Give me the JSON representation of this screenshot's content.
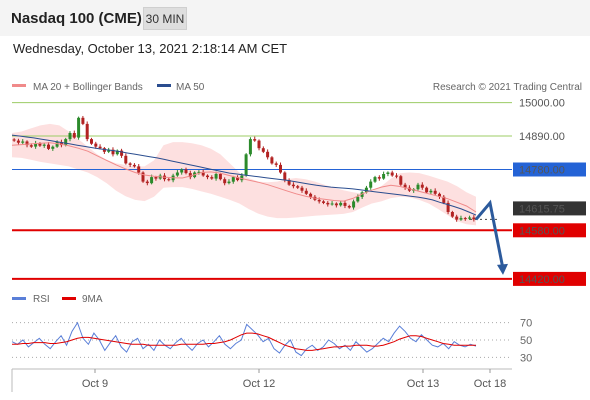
{
  "header": {
    "title": "Nasdaq 100 (CME)",
    "timeframe": "30 MIN",
    "datetime": "Wednesday, October 13, 2021 2:18:14 AM CET"
  },
  "legend": {
    "bollinger": {
      "label": "MA 20 + Bollinger Bands",
      "color": "#f08a8a"
    },
    "ma50": {
      "label": "MA 50",
      "color": "#2a4d8f"
    }
  },
  "credit": "Research © 2021 Trading Central",
  "colors": {
    "up": "#2b8a2b",
    "down": "#b22222",
    "support": "#e00000",
    "resistance_green": "#9ccc65",
    "resistance_blue": "#2463d6",
    "pivot_arrow": "#2c5a9c",
    "band_fill": "#fde0e0"
  },
  "chart_data": [
    {
      "type": "line",
      "name": "price",
      "x_ticks": [
        "Oct 9",
        "Oct 12",
        "Oct 13",
        "Oct 18"
      ],
      "ylim": [
        14400,
        15025
      ],
      "levels": [
        {
          "label": "15000.00",
          "value": 15000,
          "kind": "resistance"
        },
        {
          "label": "14890.00",
          "value": 14890,
          "kind": "resistance"
        },
        {
          "label": "14780.00",
          "value": 14780,
          "kind": "pivot"
        },
        {
          "label": "14615.75",
          "value": 14615.75,
          "kind": "last"
        },
        {
          "label": "14580.00",
          "value": 14580,
          "kind": "support"
        },
        {
          "label": "14420.00",
          "value": 14420,
          "kind": "support"
        }
      ],
      "candles_close": [
        14875,
        14868,
        14872,
        14860,
        14855,
        14866,
        14858,
        14862,
        14848,
        14855,
        14870,
        14860,
        14880,
        14900,
        14885,
        14950,
        14930,
        14880,
        14865,
        14855,
        14850,
        14838,
        14845,
        14830,
        14842,
        14825,
        14800,
        14795,
        14790,
        14770,
        14740,
        14735,
        14755,
        14750,
        14760,
        14748,
        14745,
        14760,
        14770,
        14780,
        14768,
        14755,
        14770,
        14772,
        14760,
        14755,
        14750,
        14765,
        14748,
        14735,
        14740,
        14755,
        14745,
        14760,
        14830,
        14880,
        14875,
        14850,
        14838,
        14820,
        14800,
        14795,
        14770,
        14745,
        14730,
        14725,
        14720,
        14710,
        14700,
        14690,
        14680,
        14675,
        14670,
        14665,
        14668,
        14662,
        14670,
        14660,
        14655,
        14675,
        14690,
        14705,
        14720,
        14740,
        14755,
        14750,
        14765,
        14770,
        14760,
        14758,
        14730,
        14720,
        14710,
        14715,
        14730,
        14720,
        14705,
        14710,
        14700,
        14690,
        14670,
        14640,
        14625,
        14615,
        14620,
        14618,
        14622,
        14615.75
      ],
      "ma50": [
        14893,
        14890,
        14887,
        14884,
        14880,
        14876,
        14872,
        14868,
        14864,
        14860,
        14856,
        14852,
        14848,
        14845,
        14842,
        14838,
        14834,
        14830,
        14826,
        14822,
        14818,
        14813,
        14808,
        14803,
        14798,
        14793,
        14788,
        14783,
        14778,
        14773,
        14768,
        14765,
        14762,
        14759,
        14756,
        14753,
        14750,
        14747,
        14744,
        14740,
        14736,
        14732,
        14728,
        14725,
        14722,
        14720,
        14718,
        14716,
        14713,
        14710,
        14707,
        14704,
        14701,
        14698,
        14695,
        14692,
        14689,
        14685,
        14680,
        14672,
        14665,
        14658,
        14650,
        14640,
        14630
      ],
      "bollinger_mid": [
        14860,
        14862,
        14864,
        14866,
        14868,
        14864,
        14858,
        14850,
        14840,
        14825,
        14810,
        14795,
        14782,
        14770,
        14762,
        14758,
        14755,
        14753,
        14752,
        14760,
        14770,
        14772,
        14768,
        14760,
        14752,
        14745,
        14738,
        14730,
        14720,
        14710,
        14700,
        14692,
        14686,
        14682,
        14678,
        14676,
        14685,
        14700,
        14712,
        14722,
        14728,
        14724,
        14716,
        14708,
        14700,
        14692,
        14684,
        14672,
        14660,
        14640
      ],
      "bollinger_upper": [
        14900,
        14905,
        14915,
        14925,
        14930,
        14925,
        14905,
        14880,
        14855,
        14830,
        14812,
        14800,
        14795,
        14790,
        14790,
        14810,
        14860,
        14870,
        14870,
        14866,
        14860,
        14848,
        14830,
        14800,
        14770,
        14752,
        14740,
        14738,
        14740,
        14748,
        14752,
        14748,
        14740,
        14730,
        14720,
        14712,
        14705,
        14700,
        14708,
        14725,
        14750,
        14768,
        14770,
        14768,
        14760,
        14750,
        14740,
        14725,
        14705,
        14690
      ],
      "bollinger_lower": [
        14820,
        14818,
        14812,
        14805,
        14800,
        14795,
        14790,
        14780,
        14770,
        14755,
        14735,
        14710,
        14692,
        14680,
        14676,
        14690,
        14720,
        14722,
        14722,
        14716,
        14708,
        14700,
        14690,
        14680,
        14668,
        14650,
        14635,
        14625,
        14620,
        14620,
        14622,
        14625,
        14628,
        14630,
        14632,
        14634,
        14640,
        14655,
        14668,
        14675,
        14686,
        14690,
        14688,
        14680,
        14668,
        14650,
        14630,
        14610,
        14600,
        14596
      ],
      "forecast": [
        14615.75,
        14670,
        14440
      ]
    },
    {
      "type": "line",
      "name": "oscillator",
      "legend": [
        "RSI",
        "9MA"
      ],
      "ylim": [
        20,
        80
      ],
      "y_ticks": [
        70,
        50,
        30
      ],
      "rsi": [
        48,
        45,
        50,
        42,
        47,
        52,
        45,
        40,
        48,
        55,
        44,
        60,
        70,
        52,
        45,
        58,
        50,
        38,
        47,
        55,
        42,
        36,
        48,
        52,
        40,
        45,
        38,
        50,
        44,
        40,
        47,
        52,
        44,
        38,
        46,
        50,
        42,
        48,
        55,
        45,
        40,
        46,
        50,
        68,
        62,
        56,
        48,
        52,
        40,
        35,
        44,
        50,
        36,
        32,
        40,
        44,
        38,
        42,
        50,
        46,
        40,
        44,
        38,
        48,
        42,
        36,
        40,
        46,
        52,
        48,
        58,
        66,
        60,
        52,
        48,
        56,
        50,
        44,
        42,
        46,
        40,
        48,
        44,
        42,
        45,
        43
      ],
      "ma9": [
        45,
        45,
        46,
        46,
        47,
        47,
        47,
        46,
        46,
        47,
        48,
        50,
        52,
        53,
        53,
        52,
        51,
        50,
        49,
        48,
        47,
        46,
        45,
        45,
        45,
        44,
        44,
        44,
        44,
        44,
        44,
        45,
        45,
        45,
        45,
        45,
        46,
        46,
        47,
        48,
        50,
        53,
        56,
        58,
        58,
        57,
        55,
        53,
        50,
        47,
        44,
        42,
        40,
        39,
        38,
        38,
        39,
        40,
        41,
        42,
        42,
        43,
        43,
        44,
        44,
        44,
        43,
        43,
        44,
        46,
        48,
        51,
        53,
        55,
        55,
        54,
        52,
        50,
        48,
        46,
        45,
        44,
        44,
        44,
        44,
        44
      ]
    }
  ]
}
